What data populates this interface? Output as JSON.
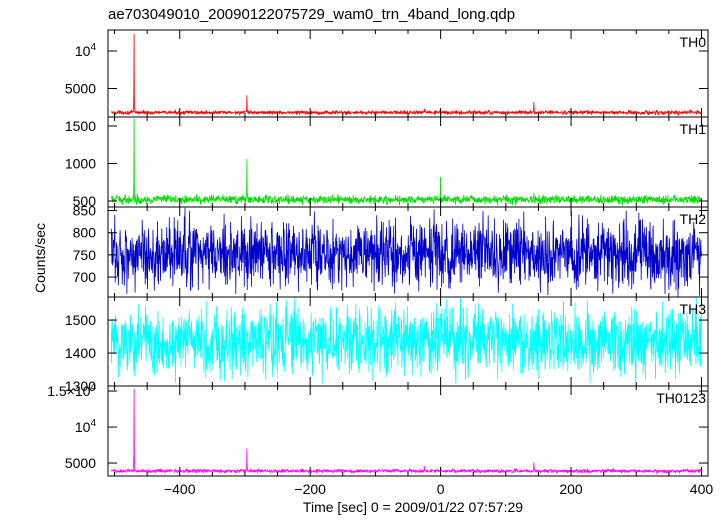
{
  "chart_data": {
    "type": "line",
    "title": "ae703049010_20090122075729_wam0_trn_4band_long.qdp",
    "xlabel": "Time [sec] 0 = 2009/01/22 07:57:29",
    "ylabel": "Counts/sec",
    "xlim": [
      -510,
      410
    ],
    "x_ticks": [
      -400,
      -200,
      0,
      200,
      400
    ],
    "x_tick_labels": [
      "−400",
      "−200",
      "0",
      "200",
      "400"
    ],
    "grid": false,
    "panels": [
      {
        "name": "TH0",
        "color": "#ff0000",
        "ylim": [
          1200,
          12800
        ],
        "yticks": [
          5000,
          10000
        ],
        "ytick_labels": [
          "5000",
          "10^4"
        ],
        "baseline": 1800,
        "noise": 120,
        "spikes": [
          {
            "x": -470,
            "y": 12300
          },
          {
            "x": -297,
            "y": 4100
          },
          {
            "x": -25,
            "y": 2300
          },
          {
            "x": 0,
            "y": 2200
          },
          {
            "x": 143,
            "y": 3200
          }
        ]
      },
      {
        "name": "TH1",
        "color": "#00dd00",
        "ylim": [
          420,
          1620
        ],
        "yticks": [
          500,
          1000,
          1500
        ],
        "ytick_labels": [
          "500",
          "1000",
          "1500"
        ],
        "baseline": 520,
        "noise": 28,
        "spikes": [
          {
            "x": -470,
            "y": 1600
          },
          {
            "x": -297,
            "y": 1060
          },
          {
            "x": 0,
            "y": 820
          },
          {
            "x": 143,
            "y": 610
          }
        ]
      },
      {
        "name": "TH2",
        "color": "#0000cc",
        "ylim": [
          655,
          858
        ],
        "yticks": [
          700,
          750,
          800,
          850
        ],
        "ytick_labels": [
          "700",
          "750",
          "800",
          "850"
        ],
        "baseline": 752,
        "noise": 38,
        "spikes": []
      },
      {
        "name": "TH3",
        "color": "#00ffff",
        "ylim": [
          1300,
          1570
        ],
        "yticks": [
          1300,
          1400,
          1500
        ],
        "ytick_labels": [
          "1300",
          "1400",
          "1500"
        ],
        "baseline": 1435,
        "noise": 52,
        "spikes": []
      },
      {
        "name": "TH0123",
        "color": "#ff00ff",
        "ylim": [
          3200,
          15700
        ],
        "yticks": [
          5000,
          10000,
          15000
        ],
        "ytick_labels": [
          "5000",
          "10^4",
          "1.5×10^4"
        ],
        "baseline": 3900,
        "noise": 120,
        "spikes": [
          {
            "x": -470,
            "y": 15300
          },
          {
            "x": -297,
            "y": 7000
          },
          {
            "x": -25,
            "y": 4600
          },
          {
            "x": 0,
            "y": 4500
          },
          {
            "x": 143,
            "y": 5100
          }
        ]
      }
    ]
  }
}
